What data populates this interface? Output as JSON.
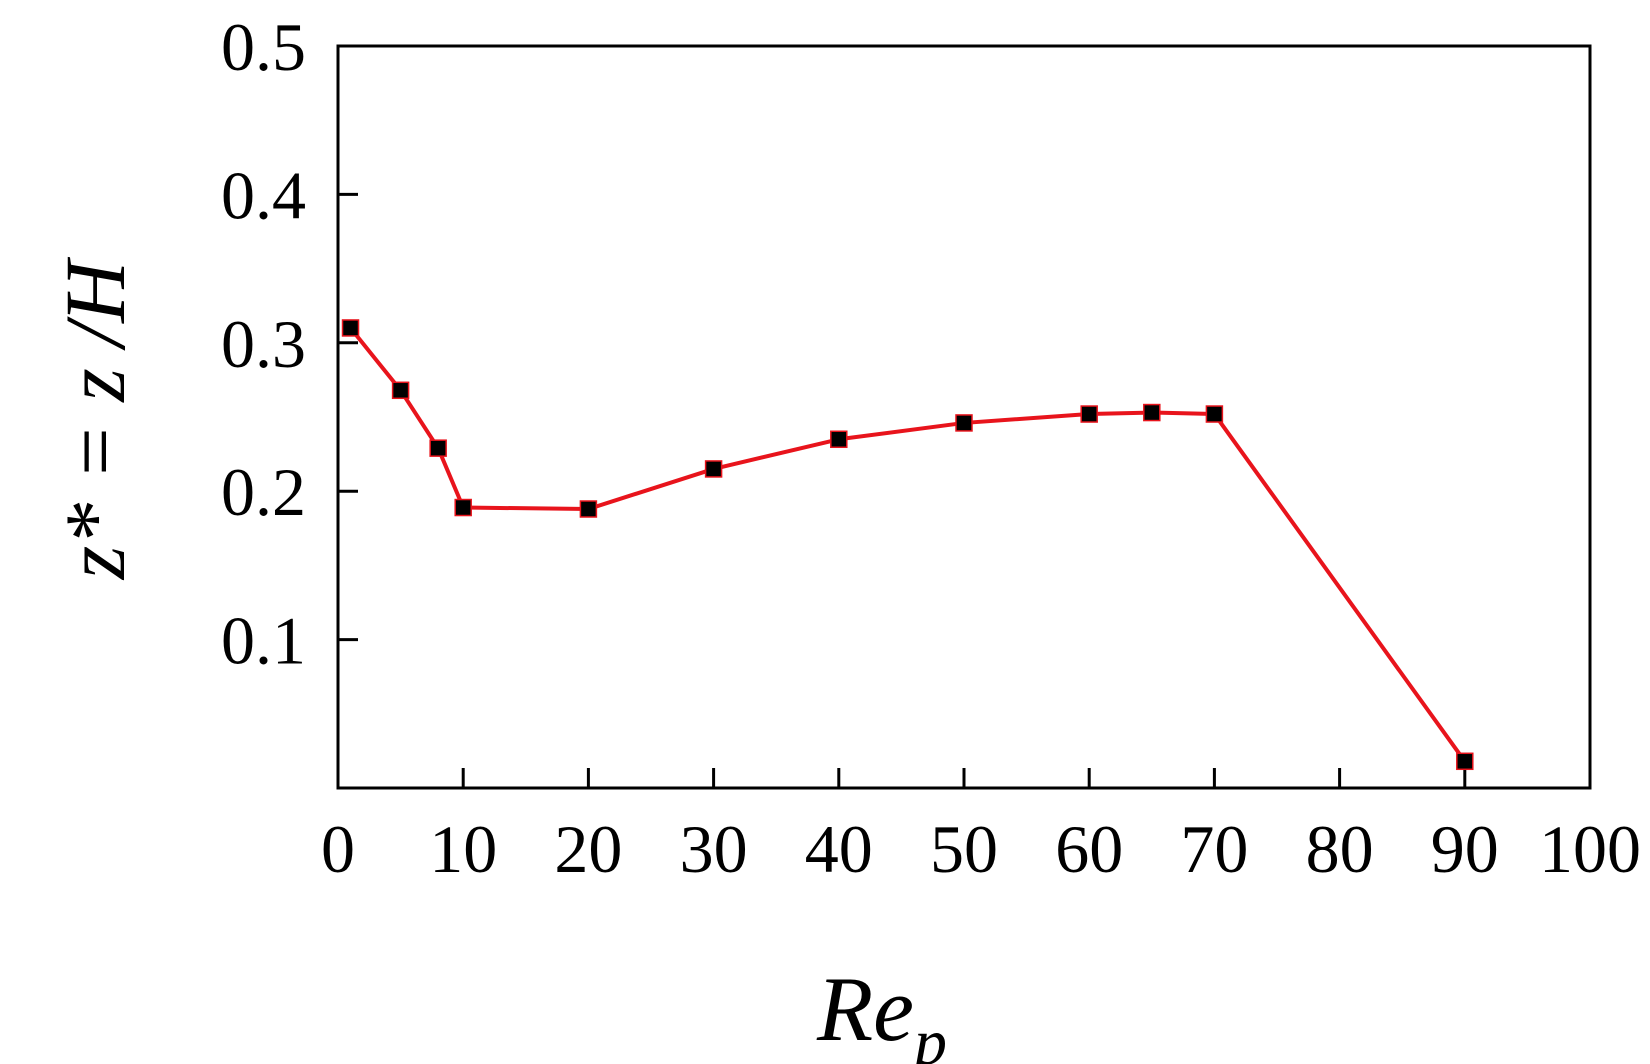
{
  "chart_data": {
    "type": "line",
    "x": [
      1,
      5,
      8,
      10,
      20,
      30,
      40,
      50,
      60,
      65,
      70,
      90
    ],
    "series": [
      {
        "name": "",
        "values": [
          0.31,
          0.268,
          0.229,
          0.189,
          0.188,
          0.215,
          0.235,
          0.246,
          0.252,
          0.253,
          0.252,
          0.018
        ]
      }
    ],
    "xlim": [
      0,
      100
    ],
    "ylim": [
      0,
      0.5
    ],
    "xticks": [
      "0",
      "10",
      "20",
      "30",
      "40",
      "50",
      "60",
      "70",
      "80",
      "90",
      "100"
    ],
    "yticks": [
      "0.1",
      "0.2",
      "0.3",
      "0.4",
      "0.5"
    ],
    "xlabel": {
      "main": "Re",
      "sub": "p"
    },
    "ylabel": "z* = z /H",
    "title": "",
    "grid": false,
    "legend": "none",
    "colors": {
      "line": "#e8141c",
      "marker": "#000000",
      "axis": "#000000"
    }
  }
}
